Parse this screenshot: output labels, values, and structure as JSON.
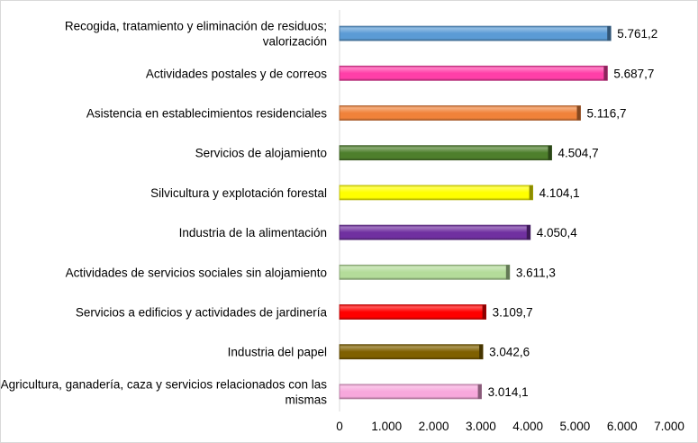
{
  "chart_data": {
    "type": "bar",
    "orientation": "horizontal",
    "title": "",
    "xlabel": "",
    "ylabel": "",
    "xlim": [
      0,
      7000
    ],
    "grid": false,
    "legend": "none",
    "x_ticks": [
      "0",
      "1.000",
      "2.000",
      "3.000",
      "4.000",
      "5.000",
      "6.000",
      "7.000"
    ],
    "categories": [
      [
        "Recogida, tratamiento y eliminación de residuos;",
        "valorización"
      ],
      [
        "Actividades postales y de correos"
      ],
      [
        "Asistencia en establecimientos residenciales"
      ],
      [
        "Servicios de alojamiento"
      ],
      [
        "Silvicultura y explotación forestal"
      ],
      [
        "Industria de la alimentación"
      ],
      [
        "Actividades de servicios sociales sin alojamiento"
      ],
      [
        "Servicios a edificios y actividades de jardinería"
      ],
      [
        "Industria del papel"
      ],
      [
        "Agricultura, ganadería, caza y servicios relacionados con las",
        "mismas"
      ]
    ],
    "values": [
      5761.2,
      5687.7,
      5116.7,
      4504.7,
      4104.1,
      4050.4,
      3611.3,
      3109.7,
      3042.6,
      3014.1
    ],
    "data_labels": [
      "5.761,2",
      "5.687,7",
      "5.116,7",
      "4.504,7",
      "4.104,1",
      "4.050,4",
      "3.611,3",
      "3.109,7",
      "3.042,6",
      "3.014,1"
    ],
    "colors": [
      "#5b9bd5",
      "#ff3fa8",
      "#f0823a",
      "#4e7f2c",
      "#ffff00",
      "#7030a0",
      "#b4dc9a",
      "#ff0000",
      "#7f6000",
      "#f7a8dc"
    ]
  }
}
